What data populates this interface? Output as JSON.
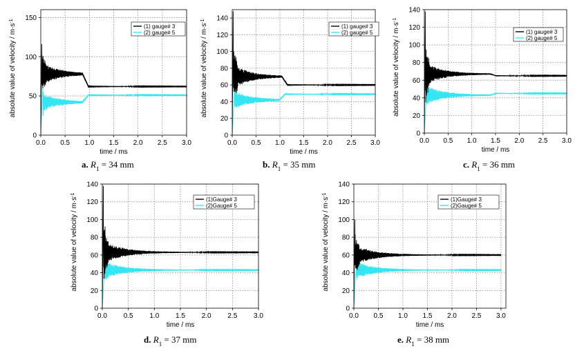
{
  "chart_data": [
    {
      "type": "line",
      "id": "a",
      "caption": {
        "letter": "a.",
        "text": "R1 = 34 mm"
      },
      "xlabel": "time / ms",
      "ylabel": "absolute value of velocity / m·s-1",
      "xlim": [
        0,
        3.0
      ],
      "ylim": [
        0,
        160
      ],
      "xticks": [
        0.0,
        0.5,
        1.0,
        1.5,
        2.0,
        2.5,
        3.0
      ],
      "yticks": [
        0,
        50,
        100,
        150
      ],
      "grid": true,
      "legend_position": "top-right",
      "series": [
        {
          "name": "(1) gauge# 3",
          "color": "#000000",
          "peak": 116,
          "peak_t": 0.02,
          "early": 78,
          "step_t": 0.92,
          "late": 62,
          "osc": 14
        },
        {
          "name": "(2) gauge# 5",
          "color": "#33e6f2",
          "peak": 62,
          "peak_t": 0.04,
          "early": 42,
          "step_t": 0.92,
          "late": 51,
          "osc": 10
        }
      ]
    },
    {
      "type": "line",
      "id": "b",
      "caption": {
        "letter": "b.",
        "text": "R1 = 35 mm"
      },
      "xlabel": "time / ms",
      "ylabel": "absolute value of velocity / m·s-1",
      "xlim": [
        0,
        3.0
      ],
      "ylim": [
        0,
        150
      ],
      "xticks": [
        0.0,
        0.5,
        1.0,
        1.5,
        2.0,
        2.5,
        3.0
      ],
      "yticks": [
        0,
        20,
        40,
        60,
        80,
        100,
        120,
        140
      ],
      "grid": true,
      "legend_position": "top-right",
      "series": [
        {
          "name": "(1) gauge# 3",
          "color": "#000000",
          "peak": 148,
          "peak_t": 0.02,
          "early": 70,
          "step_t": 1.1,
          "late": 60,
          "osc": 14
        },
        {
          "name": "(2) gauge# 5",
          "color": "#33e6f2",
          "peak": 56,
          "peak_t": 0.05,
          "early": 42,
          "step_t": 1.05,
          "late": 49,
          "osc": 10
        }
      ]
    },
    {
      "type": "line",
      "id": "c",
      "caption": {
        "letter": "c.",
        "text": "R1 = 36 mm"
      },
      "xlabel": "time / ms",
      "ylabel": "absolute value of velocity / m·s-1",
      "xlim": [
        0,
        3.0
      ],
      "ylim": [
        0,
        140
      ],
      "xticks": [
        0.0,
        0.5,
        1.0,
        1.5,
        2.0,
        2.5,
        3.0
      ],
      "yticks": [
        0,
        20,
        40,
        60,
        80,
        100,
        120,
        140
      ],
      "grid": true,
      "legend_position": "top-right",
      "series": [
        {
          "name": "(1) gauge# 3",
          "color": "#000000",
          "peak": 138,
          "peak_t": 0.02,
          "early": 67,
          "step_t": 1.45,
          "late": 65,
          "osc": 12
        },
        {
          "name": "(2) gauge# 5",
          "color": "#33e6f2",
          "peak": 52,
          "peak_t": 0.05,
          "early": 43,
          "step_t": 1.45,
          "late": 45,
          "osc": 10
        }
      ]
    },
    {
      "type": "line",
      "id": "d",
      "caption": {
        "letter": "d.",
        "text": "R1 = 37 mm"
      },
      "xlabel": "time / ms",
      "ylabel": "absolute value of velocity / m·s-1",
      "xlim": [
        0,
        3.0
      ],
      "ylim": [
        0,
        140
      ],
      "xticks": [
        0.0,
        0.5,
        1.0,
        1.5,
        2.0,
        2.5,
        3.0
      ],
      "yticks": [
        0,
        20,
        40,
        60,
        80,
        100,
        120,
        140
      ],
      "grid": true,
      "legend_position": "top-right",
      "series": [
        {
          "name": "(1)Gauge# 3",
          "color": "#000000",
          "peak": 138,
          "peak_t": 0.02,
          "early": 63,
          "step_t": 0,
          "late": 63,
          "osc": 12
        },
        {
          "name": "(2)Gauge# 5",
          "color": "#33e6f2",
          "peak": 52,
          "peak_t": 0.05,
          "early": 43,
          "step_t": 0,
          "late": 43,
          "osc": 9
        }
      ]
    },
    {
      "type": "line",
      "id": "e",
      "caption": {
        "letter": "e.",
        "text": "R1 = 38 mm"
      },
      "xlabel": "time / ms",
      "ylabel": "absolute value of velocity / m·s-1",
      "xlim": [
        0,
        3.1
      ],
      "ylim": [
        0,
        140
      ],
      "xticks": [
        0.0,
        0.5,
        1.0,
        1.5,
        2.0,
        2.5,
        3.0
      ],
      "yticks": [
        0,
        20,
        40,
        60,
        80,
        100,
        120,
        140
      ],
      "grid": true,
      "legend_position": "top-right",
      "series": [
        {
          "name": "(1)Gauge# 3",
          "color": "#000000",
          "peak": 100,
          "peak_t": 0.02,
          "early": 60,
          "step_t": 0,
          "late": 60,
          "osc": 11
        },
        {
          "name": "(2)Gauge# 5",
          "color": "#33e6f2",
          "peak": 50,
          "peak_t": 0.05,
          "early": 43,
          "step_t": 0,
          "late": 43,
          "osc": 9
        }
      ]
    }
  ]
}
